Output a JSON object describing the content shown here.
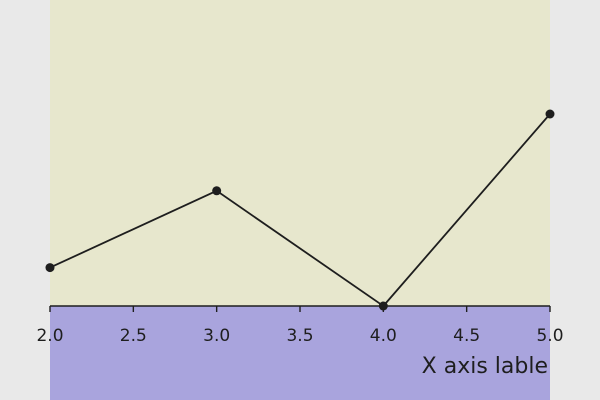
{
  "chart_data": {
    "type": "line",
    "title": "",
    "xlabel": "X axis lable",
    "ylabel": "",
    "x": [
      2.0,
      3.0,
      4.0,
      5.0
    ],
    "series": [
      {
        "values": [
          0.2,
          0.6,
          0.0,
          1.0
        ]
      }
    ],
    "xlim": [
      2.0,
      5.0
    ],
    "ylim": [
      0.0,
      1.0
    ],
    "x_ticks": [
      "2.0",
      "2.5",
      "3.0",
      "3.5",
      "4.0",
      "4.5",
      "5.0"
    ],
    "grid": false,
    "legend": "none",
    "colors": {
      "page_background": "#e9e9e9",
      "plot_background": "#e7e7cd",
      "axis_background": "#a9a4dd",
      "line": "#1e1e1e",
      "marker": "#1e1e1e",
      "axis": "#1e1e1e"
    }
  }
}
